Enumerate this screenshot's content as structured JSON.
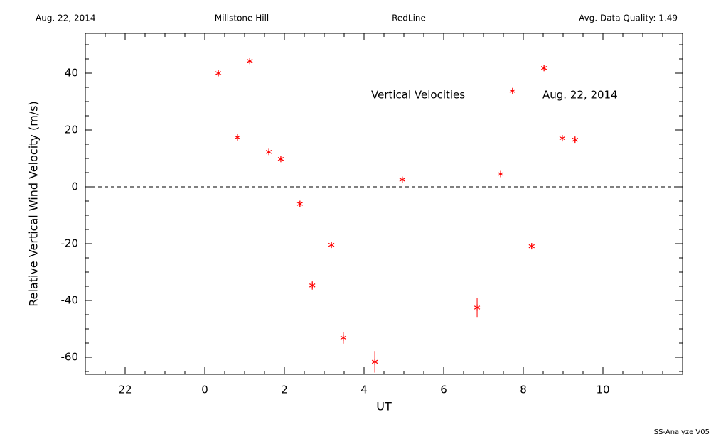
{
  "chart_data": {
    "type": "scatter",
    "header": [
      "Aug. 22, 2014",
      "Millstone Hill",
      "RedLine",
      "Avg. Data Quality: 1.49"
    ],
    "annotations": [
      "Vertical Velocities",
      "Aug. 22, 2014"
    ],
    "footer": "SS-Analyze V05",
    "x_label": "UT",
    "y_label": "Relative Vertical Wind Velocity (m/s)",
    "xlim": [
      -3,
      12
    ],
    "ylim": [
      -66,
      54
    ],
    "xticks": [
      {
        "value": -2,
        "label": "22"
      },
      0,
      2,
      4,
      6,
      8,
      10
    ],
    "yticks": [
      -60,
      -40,
      -20,
      0,
      20,
      40
    ],
    "minor_xstep": 0.5,
    "minor_ystep": 5,
    "zero_line": true,
    "color": "#ff0000",
    "x": [
      0.34,
      0.82,
      1.13,
      1.61,
      1.91,
      2.39,
      2.7,
      3.18,
      3.48,
      4.27,
      4.96,
      6.84,
      7.43,
      7.73,
      8.21,
      8.52,
      8.98,
      9.3
    ],
    "values": [
      40.0,
      17.4,
      44.3,
      12.3,
      9.8,
      -6.0,
      -34.7,
      -20.4,
      -53.1,
      -61.6,
      2.5,
      -42.5,
      4.5,
      33.7,
      -20.9,
      41.8,
      17.1,
      16.6
    ],
    "errors": [
      1,
      1,
      1,
      1,
      1,
      1,
      1.5,
      1,
      2.1,
      3.8,
      1,
      3.3,
      1,
      1,
      1,
      1,
      1,
      1
    ]
  }
}
